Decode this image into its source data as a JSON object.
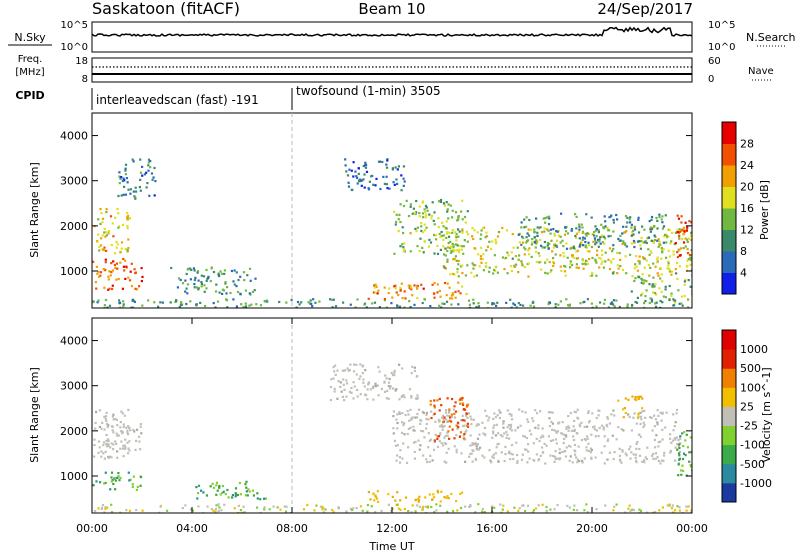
{
  "header": {
    "station": "Saskatoon (fitACF)",
    "beam": "Beam 10",
    "date": "24/Sep/2017"
  },
  "noise_panel": {
    "left_label": "N.Sky",
    "left_ticks": [
      "10^5",
      "10^0"
    ],
    "right_label": "N.Search",
    "right_ticks": [
      "10^5",
      "10^0"
    ]
  },
  "freq_panel": {
    "left_label_1": "Freq.",
    "left_label_2": "[MHz]",
    "left_ticks": [
      "18",
      "8"
    ],
    "right_label": "Nave",
    "right_ticks": [
      "60",
      "0"
    ]
  },
  "cpid": {
    "label": "CPID",
    "segments": [
      {
        "text": "interleavedscan (fast) -191",
        "start_hour": 0,
        "end_hour": 8
      },
      {
        "text": "twofsound (1-min) 3505",
        "start_hour": 8,
        "end_hour": 24
      }
    ]
  },
  "chart_data": [
    {
      "type": "heatmap",
      "quantity": "power",
      "ylabel": "Slant Range [km]",
      "xlabel": "",
      "xlim": [
        0,
        24
      ],
      "ylim": [
        180,
        4500
      ],
      "yticks": [
        "1000",
        "2000",
        "3000",
        "4000"
      ],
      "colorbar": {
        "label": "Power [dB]",
        "ticks": [
          "4",
          "8",
          "12",
          "16",
          "20",
          "24",
          "28"
        ],
        "range": [
          0,
          30
        ],
        "colors": [
          "#1020e8",
          "#2a6ab8",
          "#3a8a6a",
          "#70b840",
          "#e0e020",
          "#f0a000",
          "#f05000",
          "#e80000"
        ]
      },
      "regions": [
        {
          "t0": 0.0,
          "t1": 2.0,
          "r0": 600,
          "r1": 1300,
          "level": 24
        },
        {
          "t0": 0.0,
          "t1": 1.5,
          "r0": 1400,
          "r1": 2400,
          "level": 18
        },
        {
          "t0": 1.0,
          "t1": 2.5,
          "r0": 2600,
          "r1": 3500,
          "level": 8
        },
        {
          "t0": 3.0,
          "t1": 6.5,
          "r0": 500,
          "r1": 1100,
          "level": 10
        },
        {
          "t0": 0.0,
          "t1": 24.0,
          "r0": 180,
          "r1": 400,
          "level": 10
        },
        {
          "t0": 10.0,
          "t1": 12.5,
          "r0": 2800,
          "r1": 3500,
          "level": 6
        },
        {
          "t0": 12.0,
          "t1": 15.0,
          "r0": 1400,
          "r1": 2600,
          "level": 14
        },
        {
          "t0": 11.0,
          "t1": 15.0,
          "r0": 400,
          "r1": 800,
          "level": 22
        },
        {
          "t0": 14.0,
          "t1": 24.0,
          "r0": 900,
          "r1": 2000,
          "level": 16
        },
        {
          "t0": 17.0,
          "t1": 23.0,
          "r0": 1500,
          "r1": 2300,
          "level": 10
        },
        {
          "t0": 21.5,
          "t1": 24.0,
          "r0": 300,
          "r1": 900,
          "level": 12
        },
        {
          "t0": 23.3,
          "t1": 24.0,
          "r0": 1200,
          "r1": 2300,
          "level": 24
        }
      ]
    },
    {
      "type": "heatmap",
      "quantity": "velocity",
      "ylabel": "Slant Range [km]",
      "xlabel": "Time UT",
      "xlim": [
        0,
        24
      ],
      "ylim": [
        180,
        4500
      ],
      "yticks": [
        "1000",
        "2000",
        "3000",
        "4000"
      ],
      "xticks": [
        "00:00",
        "04:00",
        "08:00",
        "12:00",
        "16:00",
        "20:00",
        "00:00"
      ],
      "colorbar": {
        "label": "Velocity [m s^-1]",
        "ticks": [
          "1000",
          "500",
          "100",
          "25",
          "-25",
          "-100",
          "-500",
          "-1000"
        ],
        "colors": [
          "#1a3aa0",
          "#2a8aa0",
          "#3aaa4a",
          "#80d030",
          "#c0c0b8",
          "#f0c000",
          "#f08000",
          "#e02000",
          "#e00000"
        ]
      },
      "regions": [
        {
          "t0": 0.0,
          "t1": 2.0,
          "r0": 700,
          "r1": 1100,
          "class": "ground-green"
        },
        {
          "t0": 0.0,
          "t1": 1.5,
          "r0": 1400,
          "r1": 2500,
          "class": "gray"
        },
        {
          "t0": 0.5,
          "t1": 2.0,
          "r0": 1600,
          "r1": 2300,
          "class": "gray"
        },
        {
          "t0": 4.0,
          "t1": 7.0,
          "r0": 500,
          "r1": 900,
          "class": "ground-green"
        },
        {
          "t0": 9.5,
          "t1": 13.0,
          "r0": 2700,
          "r1": 3500,
          "class": "gray"
        },
        {
          "t0": 12.0,
          "t1": 23.5,
          "r0": 1300,
          "r1": 2500,
          "class": "gray"
        },
        {
          "t0": 11.0,
          "t1": 15.0,
          "r0": 450,
          "r1": 700,
          "class": "orange"
        },
        {
          "t0": 13.5,
          "t1": 15.0,
          "r0": 1800,
          "r1": 2800,
          "class": "red"
        },
        {
          "t0": 0.0,
          "t1": 24.0,
          "r0": 180,
          "r1": 400,
          "class": "mixed"
        },
        {
          "t0": 21.0,
          "t1": 22.0,
          "r0": 2300,
          "r1": 2800,
          "class": "orange"
        },
        {
          "t0": 23.3,
          "t1": 24.0,
          "r0": 800,
          "r1": 2000,
          "class": "ground-green"
        }
      ]
    }
  ]
}
